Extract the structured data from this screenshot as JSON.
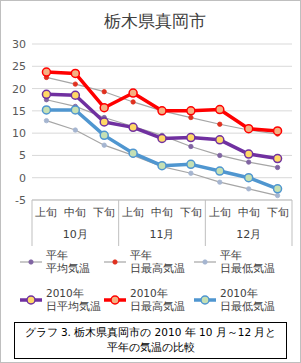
{
  "chart_data": {
    "type": "line",
    "title": "栃木県真岡市",
    "categories": [
      "上旬",
      "中旬",
      "下旬",
      "上旬",
      "中旬",
      "下旬",
      "上旬",
      "中旬",
      "下旬"
    ],
    "category_groups": [
      "10月",
      "11月",
      "12月"
    ],
    "ylim": [
      -5,
      30
    ],
    "yticks": [
      -5,
      0,
      5,
      10,
      15,
      20,
      25,
      30
    ],
    "grid": true,
    "legend": "bottom",
    "series": [
      {
        "name": "平年 平均気温",
        "color": "#a6a6a6",
        "marker": "circle",
        "line_style": "thin",
        "values": [
          17.5,
          16.0,
          13.5,
          11.5,
          9.5,
          7.0,
          5.0,
          3.5,
          2.3
        ]
      },
      {
        "name": "平年 日最高気温",
        "color": "#a6a6a6",
        "marker": "circle",
        "line_style": "thin",
        "values": [
          22.5,
          21.0,
          19.3,
          17.0,
          15.0,
          13.5,
          12.0,
          10.7,
          9.8
        ]
      },
      {
        "name": "平年 日最低気温",
        "color": "#a6a6a6",
        "marker": "circle",
        "line_style": "thin",
        "values": [
          12.8,
          10.7,
          7.3,
          5.0,
          2.5,
          1.0,
          -1.0,
          -2.5,
          -4.0
        ]
      },
      {
        "name": "2010年 日平均気温",
        "color": "#7030a0",
        "marker": "circle",
        "line_style": "thick",
        "values": [
          18.7,
          18.5,
          12.5,
          11.3,
          8.8,
          9.0,
          8.5,
          5.3,
          4.3
        ]
      },
      {
        "name": "2010年 日最高気温",
        "color": "#ff0000",
        "marker": "circle",
        "line_style": "thick",
        "values": [
          23.7,
          23.4,
          15.7,
          19.0,
          15.0,
          15.0,
          15.3,
          11.0,
          10.5
        ]
      },
      {
        "name": "2010年 日最低気温",
        "color": "#4f96d0",
        "marker": "circle",
        "line_style": "thick",
        "values": [
          15.2,
          15.2,
          9.5,
          5.5,
          2.7,
          3.0,
          1.5,
          0,
          -2.5
        ]
      }
    ],
    "caption": [
      "グラフ 3. 栃木県真岡市の 2010 年 10 月～12 月と",
      "平年の気温の比較"
    ]
  }
}
